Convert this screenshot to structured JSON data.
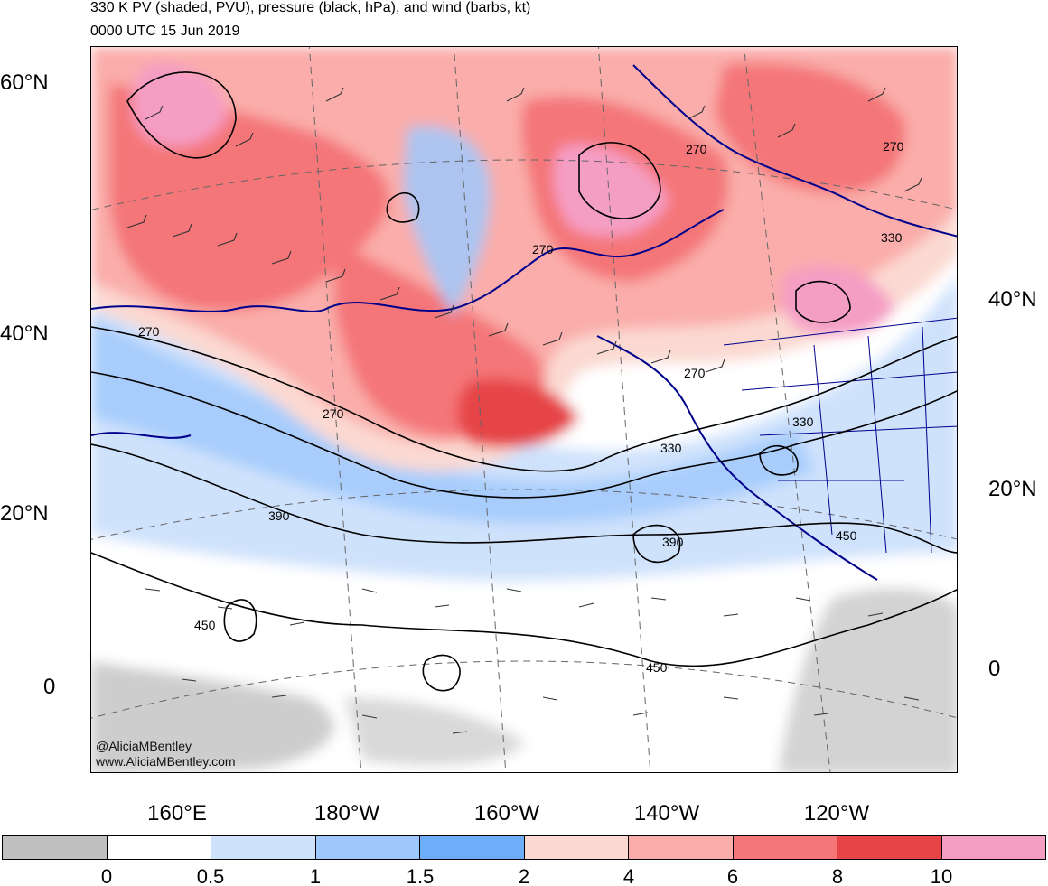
{
  "header": {
    "title": "330 K PV (shaded, PVU), pressure (black, hPa), and wind (barbs, kt)",
    "valid_time": "0000 UTC 15 Jun 2019"
  },
  "map": {
    "projection": "polar stereographic",
    "left_lat_labels": [
      "60°N",
      "40°N",
      "20°N",
      "0"
    ],
    "right_lat_labels": [
      "40°N",
      "20°N",
      "0"
    ],
    "lon_labels": [
      "160°E",
      "180°W",
      "160°W",
      "140°W",
      "120°W"
    ],
    "pressure_contour_labels": [
      "270",
      "270",
      "270",
      "270",
      "270",
      "270",
      "330",
      "330",
      "330",
      "390",
      "390",
      "450",
      "450",
      "450"
    ]
  },
  "credits": {
    "handle": "@AliciaMBentley",
    "url": "www.AliciaMBentley.com"
  },
  "colorbar": {
    "labels": [
      "0",
      "0.5",
      "1",
      "1.5",
      "2",
      "4",
      "6",
      "8",
      "10"
    ],
    "colors": [
      "#c0c0c0",
      "#ffffff",
      "#cfe2fc",
      "#9ec8fb",
      "#6caefa",
      "#fbd9d2",
      "#faadaa",
      "#f47678",
      "#e64446",
      "#f59ec4"
    ]
  }
}
